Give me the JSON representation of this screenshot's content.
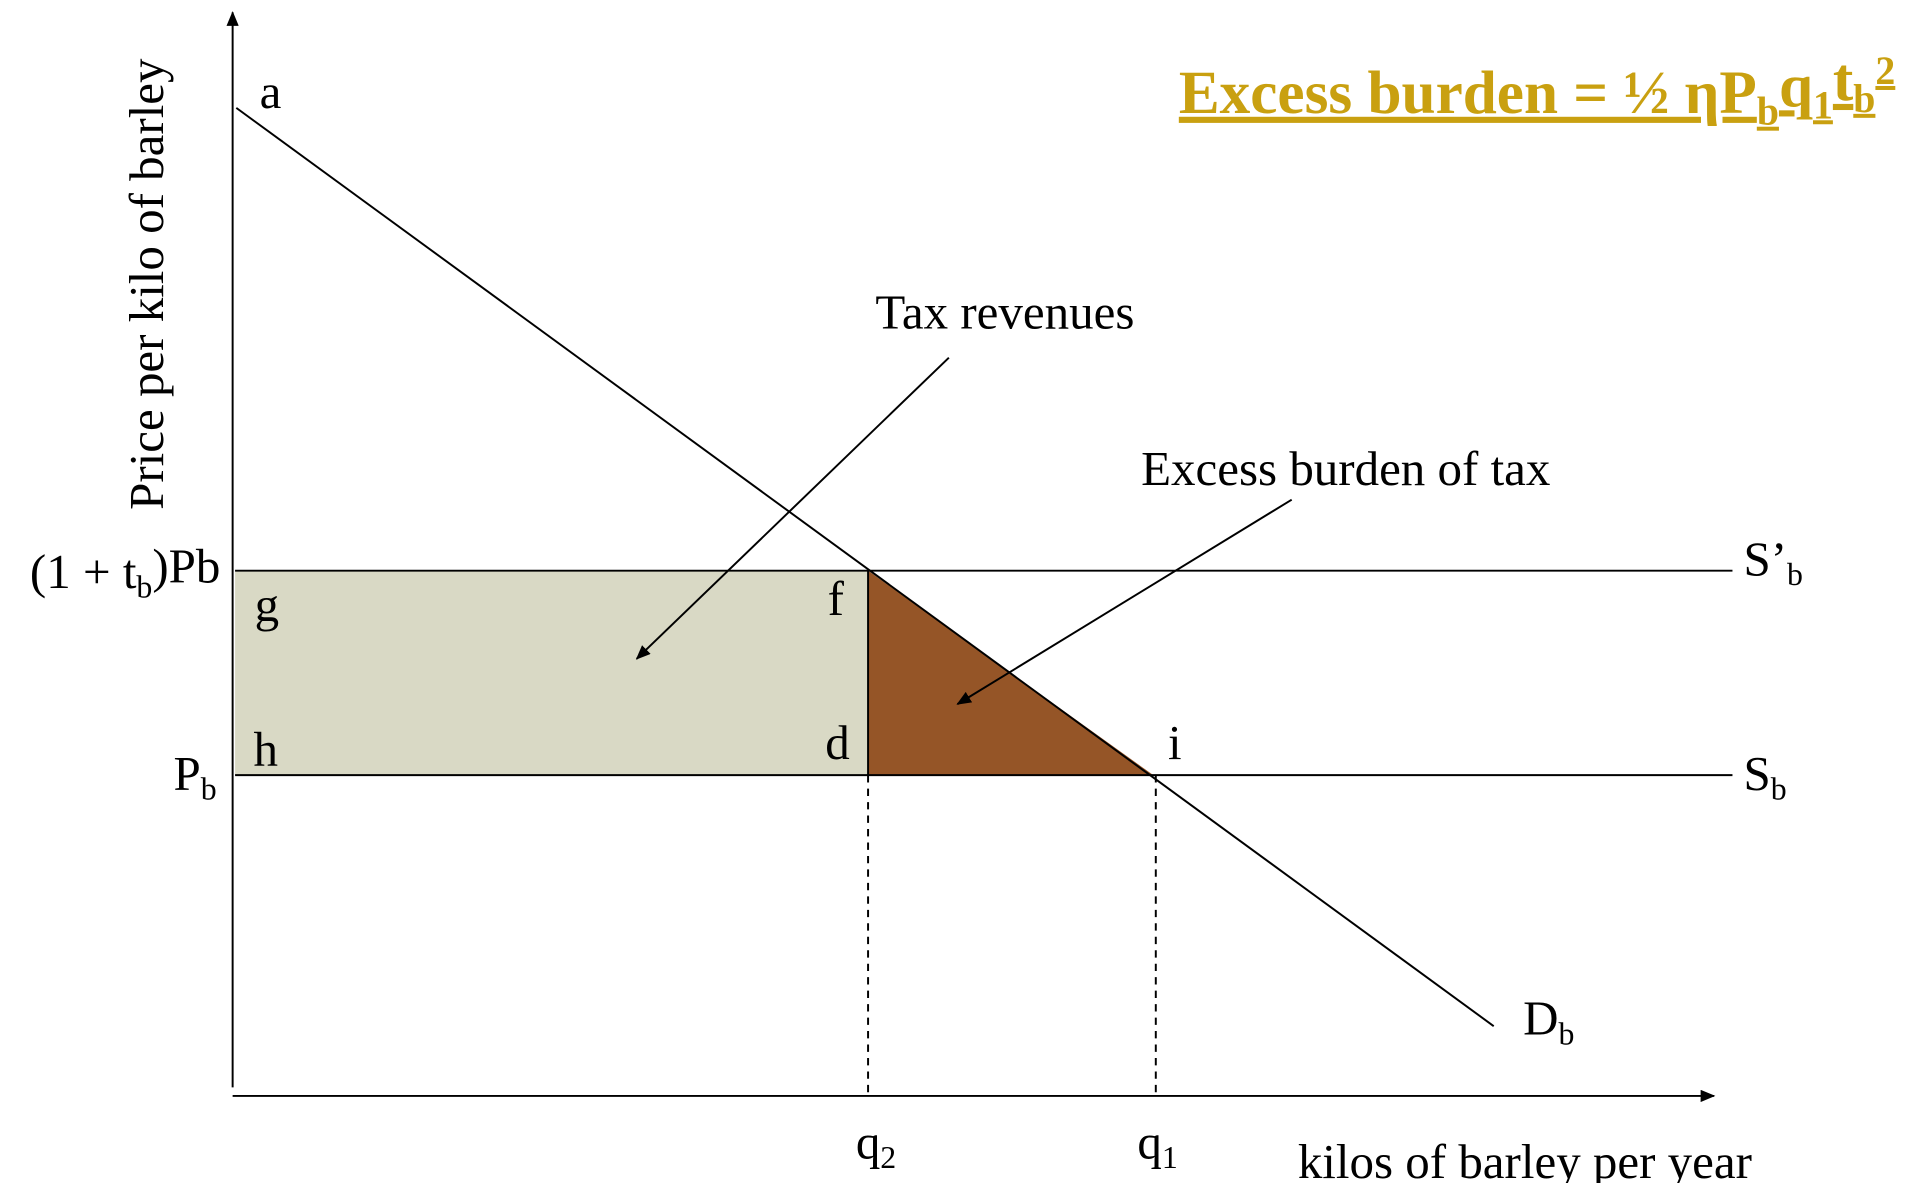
{
  "title": {
    "parts": [
      {
        "text": "Excess burden = ½ ηP"
      },
      {
        "text": "b",
        "sub": true
      },
      {
        "text": "q"
      },
      {
        "text": "1",
        "sub": true
      },
      {
        "text": "t"
      },
      {
        "text": "b",
        "sub": true
      },
      {
        "text": "2",
        "sup": true
      }
    ]
  },
  "y_axis_label": "Price per kilo of barley",
  "x_axis_label": "kilos of barley per year",
  "points": {
    "a": "a",
    "g": "g",
    "f": "f",
    "h": "h",
    "d": "d",
    "i": "i"
  },
  "price_labels": {
    "taxed": {
      "parts": [
        {
          "text": "(1 + t"
        },
        {
          "text": "b",
          "sub": true
        },
        {
          "text": ")Pb"
        }
      ]
    },
    "base": {
      "parts": [
        {
          "text": "P"
        },
        {
          "text": "b",
          "sub": true
        }
      ]
    }
  },
  "quantity_labels": {
    "q2": {
      "parts": [
        {
          "text": "q"
        },
        {
          "text": "2",
          "sub": true
        }
      ]
    },
    "q1": {
      "parts": [
        {
          "text": "q"
        },
        {
          "text": "1",
          "sub": true
        }
      ]
    }
  },
  "curve_labels": {
    "supply_taxed": {
      "parts": [
        {
          "text": "S’"
        },
        {
          "text": "b",
          "sub": true
        }
      ]
    },
    "supply": {
      "parts": [
        {
          "text": "S"
        },
        {
          "text": "b",
          "sub": true
        }
      ]
    },
    "demand": {
      "parts": [
        {
          "text": "D"
        },
        {
          "text": "b",
          "sub": true
        }
      ]
    }
  },
  "annotations": {
    "tax_revenues": "Tax revenues",
    "excess_burden": "Excess burden of tax"
  }
}
